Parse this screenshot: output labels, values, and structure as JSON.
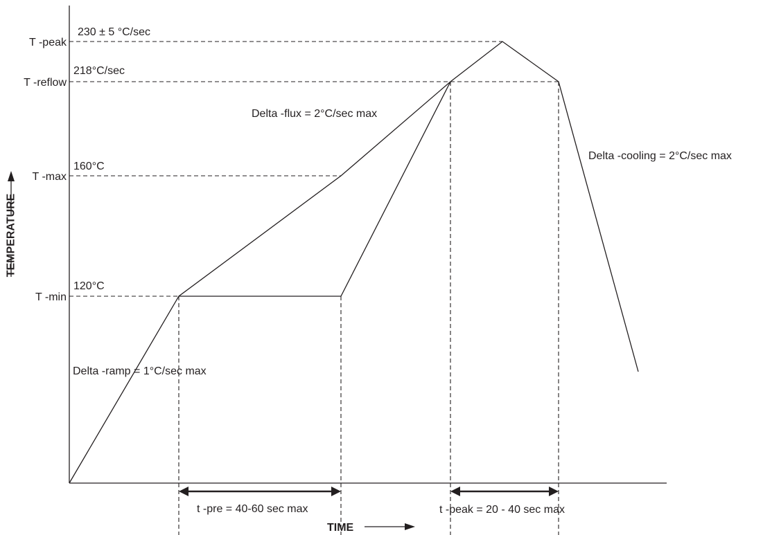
{
  "axes": {
    "y_title": "TEMPERATURE",
    "x_title": "TIME"
  },
  "levels": {
    "t_peak": {
      "label": "T -peak",
      "value": "230 ± 5 °C/sec"
    },
    "t_reflow": {
      "label": "T -reflow",
      "value": "218°C/sec"
    },
    "t_max": {
      "label": "T -max",
      "value": "160°C"
    },
    "t_min": {
      "label": "T -min",
      "value": "120°C"
    }
  },
  "rates": {
    "ramp": "Delta -ramp = 1°C/sec max",
    "flux": "Delta -flux = 2°C/sec max",
    "cooling": "Delta -cooling = 2°C/sec max"
  },
  "durations": {
    "pre": "t -pre = 40-60 sec max",
    "peak": "t -peak = 20 - 40 sec max"
  }
}
